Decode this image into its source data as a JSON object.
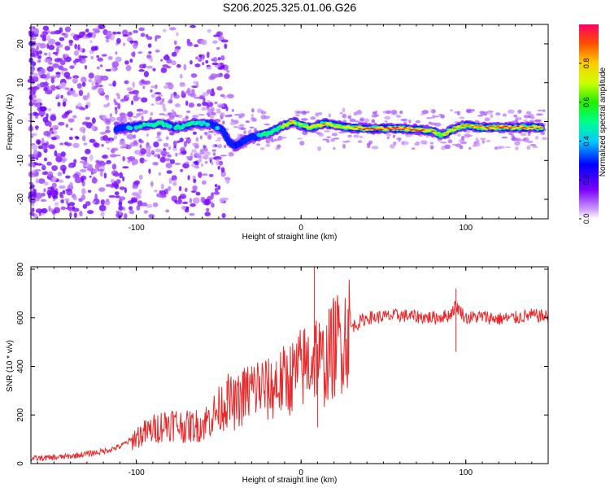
{
  "chart_data": [
    {
      "type": "heatmap",
      "title": "S206.2025.325.01.06.G26",
      "xlabel": "Height of straight line (km)",
      "ylabel": "Frequency (Hz)",
      "xlim": [
        -164,
        150
      ],
      "ylim": [
        -25,
        25
      ],
      "xticks": [
        -100,
        0,
        100
      ],
      "yticks": [
        -20,
        -10,
        0,
        10,
        20
      ],
      "xtick_labels": [
        "-100",
        "0",
        "100"
      ],
      "ytick_labels": [
        "-20",
        "-10",
        "0",
        "10",
        "20"
      ],
      "colorbar": {
        "label": "Normalized spectral amplitude",
        "range": [
          0,
          1
        ],
        "ticks": [
          0.0,
          0.2,
          0.4,
          0.6,
          0.8
        ],
        "tick_labels": [
          "0.0",
          "0.2",
          "0.4",
          "0.6",
          "0.8"
        ]
      },
      "ridge": {
        "x": [
          -112,
          -105,
          -95,
          -85,
          -75,
          -65,
          -55,
          -48,
          -44,
          -40,
          -35,
          -30,
          -25,
          -20,
          -15,
          -10,
          -5,
          0,
          5,
          10,
          15,
          20,
          30,
          40,
          50,
          60,
          70,
          80,
          85,
          90,
          95,
          100,
          110,
          120,
          130,
          140,
          147
        ],
        "freq": [
          -2,
          -1.5,
          -1,
          -0.5,
          -1.5,
          -0.5,
          -0.5,
          -2,
          -5,
          -6.5,
          -5,
          -4,
          -3.5,
          -3,
          -2,
          -1,
          0,
          -1,
          -1.5,
          -1,
          -0.5,
          -1,
          -1.5,
          -1.8,
          -1.8,
          -1.8,
          -2,
          -2.5,
          -3.5,
          -2.5,
          -1.5,
          -1,
          -1.5,
          -1.5,
          -1.5,
          -1.5,
          -1.5
        ],
        "amplitude": [
          0.35,
          0.4,
          0.45,
          0.5,
          0.45,
          0.5,
          0.4,
          0.35,
          0.4,
          0.3,
          0.35,
          0.4,
          0.45,
          0.5,
          0.6,
          0.7,
          0.85,
          0.6,
          0.75,
          0.8,
          0.85,
          0.7,
          0.75,
          0.9,
          0.95,
          0.95,
          0.9,
          0.8,
          0.75,
          0.8,
          0.85,
          0.8,
          0.9,
          0.95,
          0.95,
          0.9,
          0.85
        ]
      }
    },
    {
      "type": "line",
      "xlabel": "Height of straight line (km)",
      "ylabel": "SNR (10 * v/v)",
      "xlim": [
        -164,
        150
      ],
      "ylim": [
        0,
        810
      ],
      "xticks": [
        -100,
        0,
        100
      ],
      "yticks": [
        0,
        200,
        400,
        600,
        800
      ],
      "xtick_labels": [
        "-100",
        "0",
        "100"
      ],
      "ytick_labels": [
        "0",
        "200",
        "400",
        "600",
        "800"
      ],
      "series": [
        {
          "name": "SNR",
          "color": "#e8292a",
          "x": [
            -164,
            -150,
            -140,
            -130,
            -120,
            -110,
            -100,
            -90,
            -80,
            -70,
            -60,
            -50,
            -45,
            -40,
            -35,
            -30,
            -25,
            -20,
            -15,
            -10,
            -5,
            0,
            5,
            8,
            10,
            12,
            15,
            20,
            25,
            30,
            40,
            50,
            60,
            70,
            80,
            90,
            94,
            100,
            110,
            120,
            130,
            140,
            150
          ],
          "y": [
            20,
            25,
            30,
            40,
            50,
            70,
            110,
            140,
            170,
            150,
            160,
            220,
            260,
            240,
            280,
            300,
            320,
            300,
            320,
            340,
            360,
            390,
            420,
            440,
            460,
            400,
            420,
            480,
            520,
            560,
            600,
            605,
            610,
            605,
            600,
            610,
            650,
            600,
            605,
            595,
            600,
            610,
            605
          ],
          "spikes": [
            [
              -45,
              340
            ],
            [
              -35,
              380
            ],
            [
              -30,
              400
            ],
            [
              -25,
              360
            ],
            [
              -15,
              420
            ],
            [
              -5,
              450
            ],
            [
              8,
              810
            ],
            [
              10,
              150
            ],
            [
              94,
              720
            ],
            [
              94,
              460
            ]
          ]
        }
      ]
    }
  ],
  "colors": {
    "line": "#e8292a",
    "ridge_low": "#8000ff",
    "ridge_high": "#ff0000"
  }
}
